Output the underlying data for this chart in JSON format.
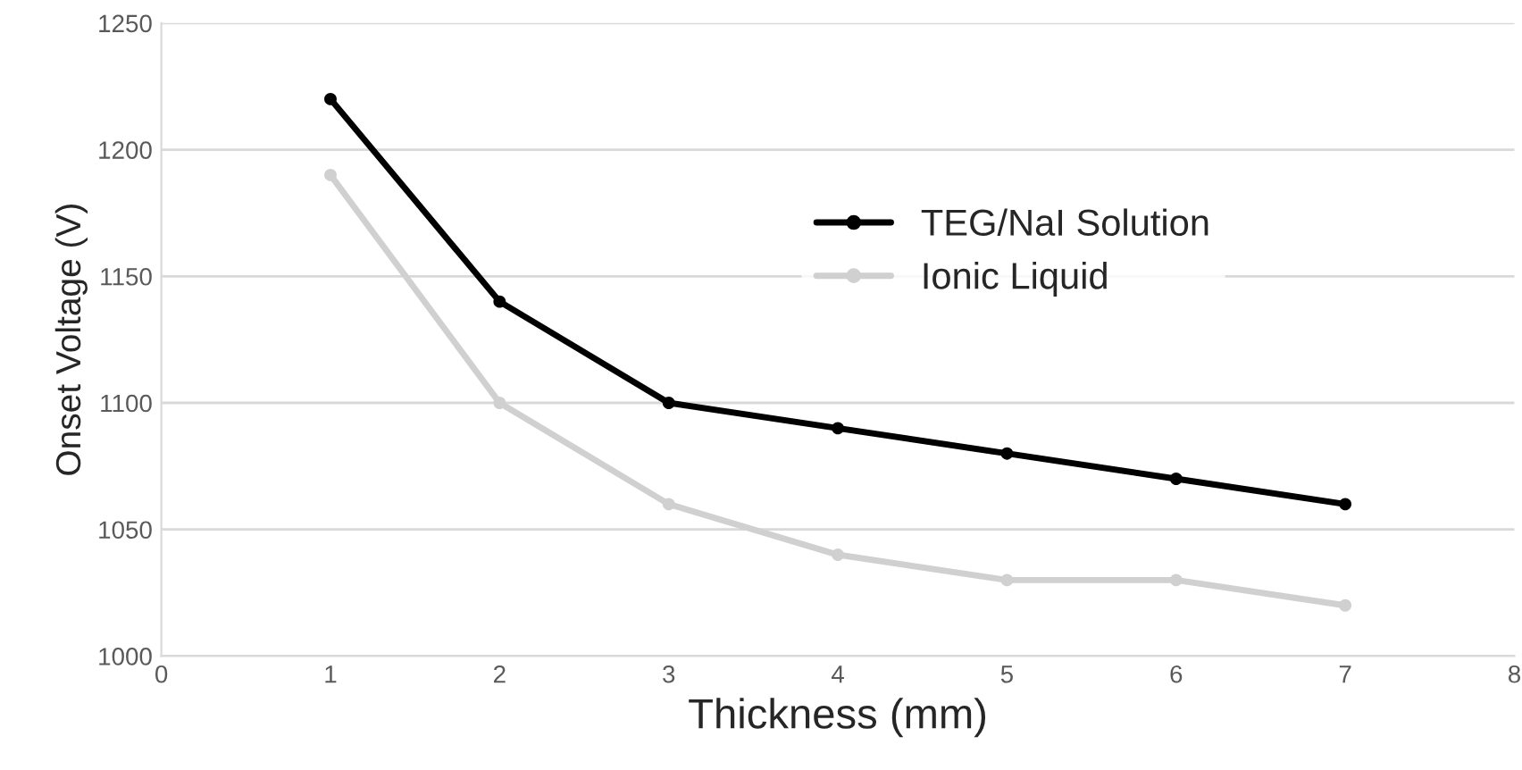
{
  "chart_data": {
    "type": "line",
    "xlabel": "Thickness (mm)",
    "ylabel": "Onset Voltage (V)",
    "x": [
      1,
      2,
      3,
      4,
      5,
      6,
      7
    ],
    "series": [
      {
        "name": "TEG/NaI Solution",
        "color": "#000000",
        "values": [
          1220,
          1140,
          1100,
          1090,
          1080,
          1070,
          1060
        ]
      },
      {
        "name": "Ionic Liquid",
        "color": "#d0d0d0",
        "values": [
          1190,
          1100,
          1060,
          1040,
          1030,
          1030,
          1020
        ]
      }
    ],
    "xlim": [
      0,
      8
    ],
    "xticks": [
      0,
      1,
      2,
      3,
      4,
      5,
      6,
      7,
      8
    ],
    "ylim": [
      1000,
      1250
    ],
    "yticks": [
      1000,
      1050,
      1100,
      1150,
      1200,
      1250
    ],
    "grid": "y",
    "legend": "top right",
    "marker": "circle",
    "line_style": "solid"
  }
}
